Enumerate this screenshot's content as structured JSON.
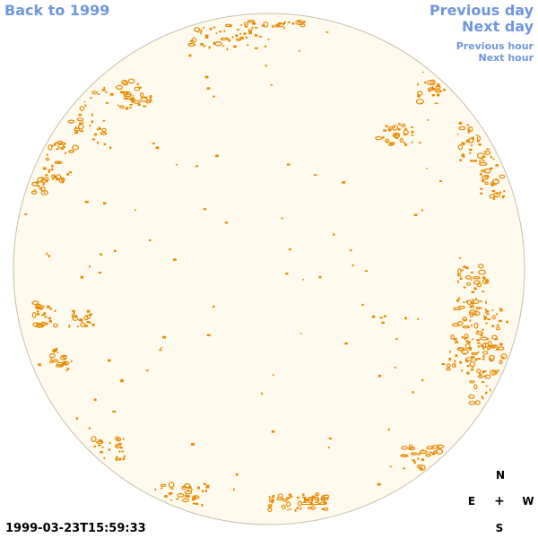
{
  "navigation": {
    "back_label": "Back to 1999",
    "previous_day_label": "Previous day",
    "next_day_label": "Next day",
    "previous_hour_label": "Previous hour",
    "next_hour_label": "Next hour"
  },
  "observation": {
    "timestamp": "1999-03-23T15:59:33",
    "year_label": "1999"
  },
  "compass": {
    "north": "N",
    "east": "E",
    "center": "+",
    "west": "W",
    "south": "S"
  },
  "colors": {
    "disk_fill": "#fefaee",
    "disk_border": "#c9bfa8",
    "feature": "#e88a00",
    "link": "#6f96dc",
    "background": "#ffffff"
  },
  "icons": {
    "compass_center": "crosshair-icon"
  }
}
